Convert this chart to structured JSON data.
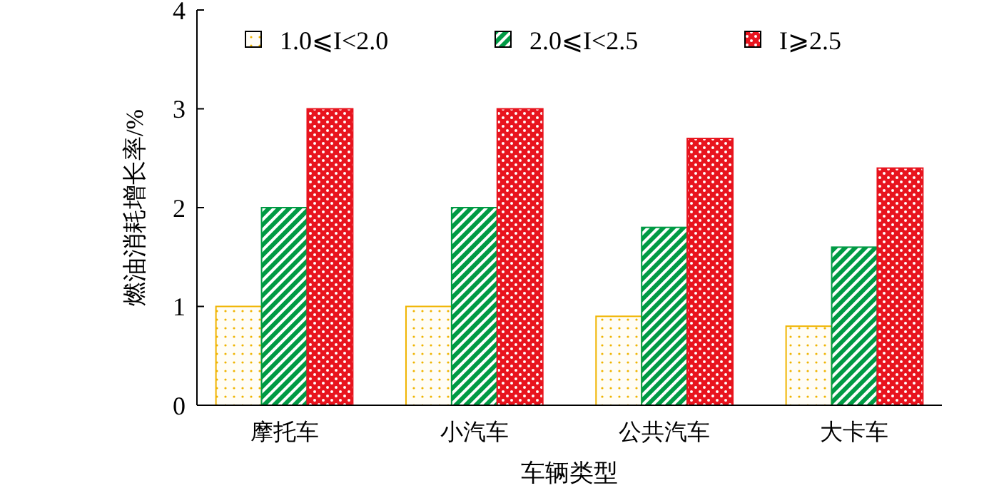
{
  "chart_data": {
    "type": "bar",
    "xlabel": "车辆类型",
    "ylabel": "燃油消耗增长率/%",
    "categories": [
      "摩托车",
      "小汽车",
      "公共汽车",
      "大卡车"
    ],
    "series": [
      {
        "name": "1.0⩽I<2.0",
        "color": "#f0b400",
        "values": [
          1,
          1,
          0.9,
          0.8
        ]
      },
      {
        "name": "2.0⩽I<2.5",
        "color": "#009a44",
        "values": [
          2,
          2,
          1.8,
          1.6
        ]
      },
      {
        "name": "I⩾2.5",
        "color": "#e8141e",
        "values": [
          3,
          3,
          2.7,
          2.4
        ]
      }
    ],
    "ylim": [
      0,
      4
    ],
    "yticks": [
      0,
      1,
      2,
      3,
      4
    ],
    "legend": "top",
    "grid": false
  }
}
